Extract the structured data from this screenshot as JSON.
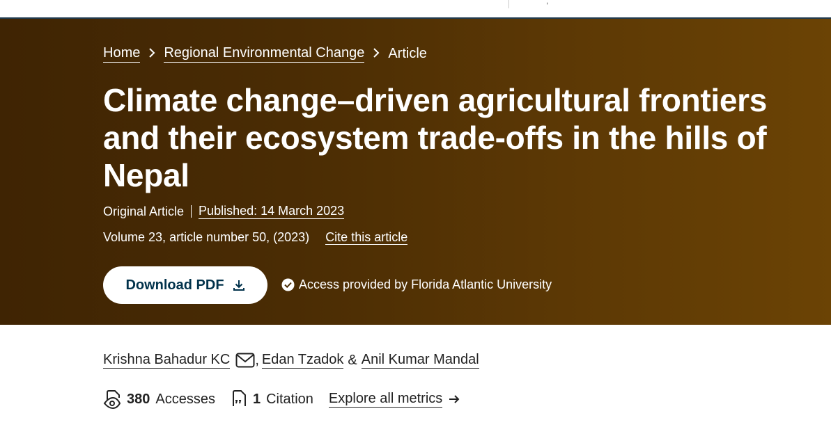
{
  "topbar": {
    "fragment": ","
  },
  "breadcrumb": {
    "home": "Home",
    "journal": "Regional Environmental Change",
    "current": "Article"
  },
  "article": {
    "title": "Climate change–driven agricultural frontiers and their ecosystem trade-offs in the hills of Nepal",
    "type": "Original Article",
    "published": "Published: 14 March 2023",
    "volume": "Volume 23, article number 50, (2023)",
    "cite": "Cite this article"
  },
  "actions": {
    "download_pdf": "Download PDF",
    "access": "Access provided by Florida Atlantic University"
  },
  "authors": [
    {
      "name": "Krishna Bahadur KC"
    },
    {
      "name": "Edan Tzadok"
    },
    {
      "name": "Anil Kumar Mandal"
    }
  ],
  "author_separators": {
    "comma": ",",
    "amp": "&"
  },
  "metrics": {
    "accesses_count": "380",
    "accesses_label": "Accesses",
    "citation_count": "1",
    "citation_label": "Citation",
    "explore": "Explore all metrics"
  },
  "colors": {
    "hero_start": "#3f2403",
    "hero_end": "#6b4305",
    "button_text": "#01324b"
  },
  "icons": {
    "mail": "envelope-icon",
    "download": "download-icon",
    "check": "check-circle-icon",
    "accesses": "eye-document-icon",
    "citation": "quote-document-icon",
    "arrow": "arrow-right-icon"
  }
}
